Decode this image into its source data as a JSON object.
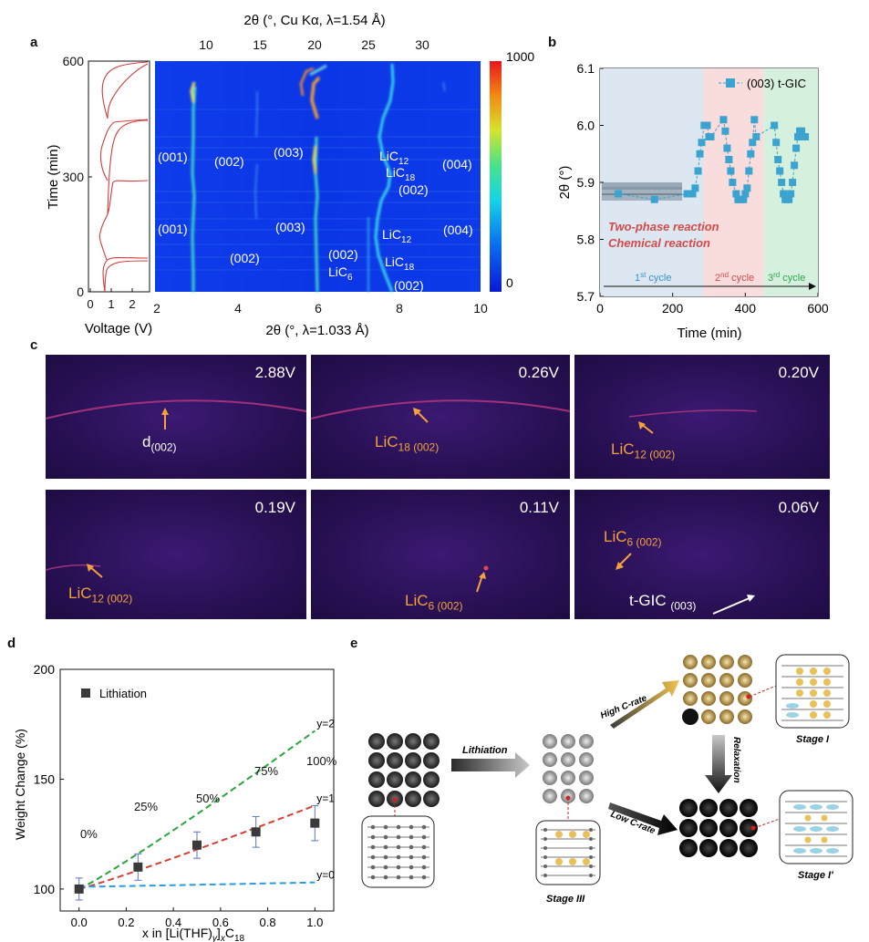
{
  "panels": {
    "a": "a",
    "b": "b",
    "c": "c",
    "d": "d",
    "e": "e"
  },
  "panel_a": {
    "top_axis_title": "2θ (°, Cu Kα, λ=1.54 Å)",
    "top_ticks": [
      "10",
      "15",
      "20",
      "25",
      "30"
    ],
    "bottom_axis_title": "2θ (°, λ=1.033 Å)",
    "bottom_ticks": [
      "2",
      "4",
      "6",
      "8",
      "10"
    ],
    "y_label": "Time (min)",
    "y_ticks": [
      "0",
      "300",
      "600"
    ],
    "voltage_label": "Voltage (V)",
    "voltage_ticks": [
      "0",
      "1",
      "2"
    ],
    "colorbar_max": "1000",
    "colorbar_min": "0",
    "peaks": {
      "p001_upper": "(001)",
      "p002_upper": "(002)",
      "p003_upper": "(003)",
      "licl2_upper": "LiC",
      "licl2_upper_sub": "12",
      "lic18_upper": "LiC",
      "lic18_upper_sub": "18",
      "p002_right_upper": "(002)",
      "p004_upper": "(004)",
      "p001_lower": "(001)",
      "p002_lower": "(002)",
      "p003_lower": "(003)",
      "p002_mid": "(002)",
      "lic6": "LiC",
      "lic6_sub": "6",
      "lic12_lower": "LiC",
      "lic12_lower_sub": "12",
      "lic18_lower": "LiC",
      "lic18_lower_sub": "18",
      "p004_lower": "(004)",
      "p002_bottom": "(002)"
    }
  },
  "chart_data": {
    "type": "scatter",
    "title": "",
    "xlabel": "Time (min)",
    "ylabel": "2θ (°)",
    "xlim": [
      0,
      600
    ],
    "ylim": [
      5.7,
      6.1
    ],
    "xticks": [
      "0",
      "200",
      "400",
      "600"
    ],
    "yticks": [
      "5.7",
      "5.8",
      "5.9",
      "6.0",
      "6.1"
    ],
    "legend": "(003) t-GIC",
    "series": [
      {
        "name": "(003) t-GIC",
        "x": [
          50,
          150,
          240,
          255,
          262,
          270,
          275,
          280,
          287,
          295,
          300,
          305,
          340,
          345,
          350,
          355,
          360,
          365,
          375,
          380,
          385,
          390,
          395,
          400,
          405,
          410,
          415,
          420,
          425,
          430,
          480,
          485,
          490,
          495,
          500,
          505,
          510,
          515,
          520,
          525,
          530,
          535,
          540,
          545,
          550,
          555,
          560,
          565
        ],
        "y": [
          5.88,
          5.87,
          5.88,
          5.88,
          5.89,
          5.92,
          5.95,
          5.97,
          6.0,
          6.0,
          5.98,
          5.98,
          6.01,
          5.99,
          5.96,
          5.94,
          5.92,
          5.9,
          5.88,
          5.87,
          5.87,
          5.87,
          5.87,
          5.88,
          5.89,
          5.92,
          5.95,
          5.97,
          6.01,
          5.98,
          6.0,
          5.97,
          5.94,
          5.92,
          5.9,
          5.88,
          5.87,
          5.87,
          5.87,
          5.88,
          5.9,
          5.93,
          5.96,
          5.98,
          5.99,
          5.99,
          5.98,
          5.98
        ]
      }
    ],
    "regions": [
      {
        "label": "1st cycle",
        "x0": 0,
        "x1": 285
      },
      {
        "label": "2nd cycle",
        "x0": 285,
        "x1": 450
      },
      {
        "label": "3rd cycle",
        "x0": 450,
        "x1": 600
      }
    ],
    "annotations": [
      "Two-phase reaction",
      "Chemical reaction"
    ],
    "cycle_labels": [
      {
        "n": "1",
        "sup": "st",
        "rest": " cycle"
      },
      {
        "n": "2",
        "sup": "nd",
        "rest": " cycle"
      },
      {
        "n": "3",
        "sup": "rd",
        "rest": " cycle"
      }
    ]
  },
  "panel_c": {
    "tiles": [
      {
        "voltage": "2.88V",
        "label": "d",
        "sub": "(002)"
      },
      {
        "voltage": "0.26V",
        "label": "LiC",
        "sub": "18 (002)"
      },
      {
        "voltage": "0.20V",
        "label": "LiC",
        "sub": "12 (002)"
      },
      {
        "voltage": "0.19V",
        "label": "LiC",
        "sub": "12 (002)"
      },
      {
        "voltage": "0.11V",
        "label": "LiC",
        "sub": "6 (002)"
      },
      {
        "voltage": "0.06V",
        "label": "LiC",
        "sub": "6 (002)",
        "label2": "t-GIC ",
        "sub2": "(003)"
      }
    ]
  },
  "panel_d": {
    "chart_data": {
      "type": "scatter",
      "xlabel": "x in [Li(THF)y]xC18",
      "ylabel": "Weight Change (%)",
      "xlim": [
        -0.08,
        1.08
      ],
      "ylim": [
        90,
        200
      ],
      "xticks": [
        "0.0",
        "0.2",
        "0.4",
        "0.6",
        "0.8",
        "1.0"
      ],
      "yticks": [
        "100",
        "150",
        "200"
      ],
      "legend": "Lithiation",
      "series": [
        {
          "name": "Lithiation",
          "x": [
            0,
            0.25,
            0.5,
            0.75,
            1.0
          ],
          "y": [
            100,
            110,
            120,
            126,
            130
          ],
          "err": [
            5,
            6,
            6,
            7,
            8
          ]
        }
      ],
      "lines": [
        {
          "label": "y=2",
          "color": "#27a63a",
          "x0": 0,
          "y0": 100,
          "x1": 1.0,
          "y1": 172
        },
        {
          "label": "y=1",
          "color": "#d53e35",
          "x0": 0,
          "y0": 100,
          "x1": 1.0,
          "y1": 138
        },
        {
          "label": "y=0",
          "color": "#2a9de0",
          "x0": 0,
          "y0": 101,
          "x1": 1.0,
          "y1": 103
        }
      ],
      "percent_labels": [
        "0%",
        "25%",
        "50%",
        "75%",
        "100%"
      ]
    },
    "xlabel_parts": {
      "pre": "x in [Li(THF)",
      "y": "y",
      "mid": "]",
      "x": "x",
      "post": "C",
      "n": "18"
    }
  },
  "panel_e": {
    "lithiation": "Lithiation",
    "high": "High C-rate",
    "low": "Low C-rate",
    "relaxation": "Relaxation",
    "stage3": "Stage III",
    "stage1": "Stage I",
    "stage1p": "Stage I'"
  },
  "colors": {
    "heatmap_bg": "#0a35e8",
    "region1": "#dde7f1",
    "region2": "#f9dcdc",
    "region3": "#d6f0de",
    "series": "#3aa3cf",
    "annotation": "#d24a4a",
    "tile_label": "#f3a23c"
  }
}
